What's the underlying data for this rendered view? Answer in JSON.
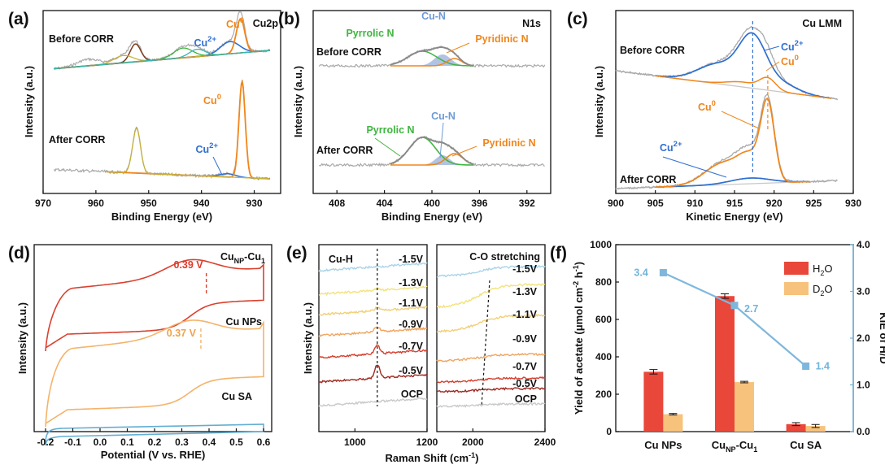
{
  "colors": {
    "grey_raw": "#a9a9a9",
    "orange": "#f0861c",
    "blue": "#2f6fd1",
    "green": "#3fb53f",
    "olive": "#c4b23c",
    "teal": "#38b6b0",
    "brown": "#7a3b1e",
    "light_blue_fill": "#9eb4db",
    "bar_h2o": "#e8473a",
    "bar_d2o": "#f7c27c",
    "kie_line": "#7fb7dc",
    "kie_axis": "#6fb5dd",
    "cv_red": "#d9412f",
    "cv_orange": "#f4b36a",
    "cv_blue": "#62aed3",
    "red_label": "#e03a2a",
    "orange_label": "#f0a24a"
  },
  "chart_data": [
    {
      "panel_label": "(a)",
      "type": "line",
      "corner_label": "Cu2p",
      "xlabel": "Binding Energy (eV)",
      "ylabel": "Intensity (a.u.)",
      "xlim": [
        970,
        925
      ],
      "x_ticks": [
        "970",
        "960",
        "950",
        "940",
        "930"
      ],
      "curves": [
        {
          "label": "Before CORR"
        },
        {
          "label": "After CORR"
        }
      ],
      "peaks": {
        "before_cu0": {
          "label": "Cu",
          "sup": "0",
          "x": 932.5
        },
        "before_cu2": {
          "label": "Cu",
          "sup": "2+",
          "x": 934.5
        },
        "after_cu0": {
          "label": "Cu",
          "sup": "0",
          "x": 932.3
        },
        "after_cu2": {
          "label": "Cu",
          "sup": "2+",
          "x": 935.0
        },
        "satellite_before": 952.5,
        "satellite_after": 952.3
      }
    },
    {
      "panel_label": "(b)",
      "type": "line",
      "corner_label": "N1s",
      "xlabel": "Binding Energy (eV)",
      "ylabel": "Intensity (a.u.)",
      "xlim": [
        410,
        390
      ],
      "x_ticks": [
        "408",
        "404",
        "400",
        "396",
        "392"
      ],
      "curves": [
        {
          "label": "Before CORR"
        },
        {
          "label": "After CORR"
        }
      ],
      "components": [
        {
          "label": "Pyrrolic N",
          "x": 400.8
        },
        {
          "label": "Cu-N",
          "x": 399.1
        },
        {
          "label": "Pyridinic N",
          "x": 398.1
        }
      ]
    },
    {
      "panel_label": "(c)",
      "type": "line",
      "corner_label": "Cu LMM",
      "xlabel": "Kinetic Energy (eV)",
      "ylabel": "Intensity (a.u.)",
      "xlim": [
        900,
        930
      ],
      "x_ticks": [
        "900",
        "905",
        "910",
        "915",
        "920",
        "925",
        "930"
      ],
      "curves": [
        {
          "label": "Before CORR"
        },
        {
          "label": "After CORR"
        }
      ],
      "components": [
        {
          "label": "Cu",
          "sup": "2+",
          "x": 917.3
        },
        {
          "label": "Cu",
          "sup": "0",
          "x": 919.2
        }
      ],
      "guides": [
        917.3,
        919.2
      ]
    },
    {
      "panel_label": "(d)",
      "type": "line",
      "xlabel": "Potential (V vs. RHE)",
      "ylabel": "Intensity (a.u.)",
      "xlim": [
        -0.2,
        0.6
      ],
      "x_ticks": [
        "-0.2",
        "-0.1",
        "0.0",
        "0.1",
        "0.2",
        "0.3",
        "0.4",
        "0.5",
        "0.6"
      ],
      "series": [
        {
          "name": "Cu",
          "sub": "NP",
          "suffix": "-Cu",
          "sub2": "1",
          "marker": "0.39 V",
          "marker_x": 0.39
        },
        {
          "name": "Cu NPs",
          "marker": "0.37 V",
          "marker_x": 0.37
        },
        {
          "name": "Cu SA"
        }
      ]
    },
    {
      "panel_label": "(e)",
      "type": "line",
      "xlabel": "Raman Shift (cm",
      "xlabel_sup": "-1",
      "xlabel_end": ")",
      "ylabel": "Intensity (a.u.)",
      "left_region": {
        "title": "Cu-H",
        "xlim": [
          900,
          1200
        ],
        "x_ticks": [
          "1000",
          "1200"
        ],
        "guide_x": 1062,
        "labels": [
          "-1.5V",
          "-1.3V",
          "-1.1V",
          "-0.9V",
          "-0.7V",
          "-0.5V",
          "OCP"
        ]
      },
      "right_region": {
        "title": "C-O stretching",
        "xlim": [
          1800,
          2400
        ],
        "x_ticks": [
          "2000",
          "2400"
        ],
        "labels": [
          "-1.5V",
          "-1.3V",
          "-1.1V",
          "-0.9V",
          "-0.7V",
          "-0.5V",
          "OCP"
        ]
      }
    },
    {
      "panel_label": "(f)",
      "type": "bar",
      "categories": [
        {
          "text": "Cu NPs"
        },
        {
          "text": "Cu",
          "sub": "NP",
          "suffix": "-Cu",
          "sub2": "1"
        },
        {
          "text": "Cu SA"
        }
      ],
      "ylabel": "Yield of acetate (μmol cm",
      "ylabel_sup1": "-2",
      "ylabel_mid": " h",
      "ylabel_sup2": "-1",
      "ylabel_end": ")",
      "y2label": "KIE of H/D",
      "ylim": [
        0,
        1000
      ],
      "y2lim": [
        0,
        4.0
      ],
      "y_ticks": [
        "0",
        "200",
        "400",
        "600",
        "800",
        "1000"
      ],
      "y2_ticks": [
        "0.0",
        "1.0",
        "2.0",
        "3.0",
        "4.0"
      ],
      "series": [
        {
          "name": "H",
          "sub": "2",
          "suffix": "O",
          "values": [
            320,
            725,
            40
          ],
          "errors": [
            12,
            12,
            8
          ]
        },
        {
          "name": "D",
          "sub": "2",
          "suffix": "O",
          "values": [
            93,
            265,
            30
          ],
          "errors": [
            4,
            4,
            8
          ]
        }
      ],
      "kie": {
        "values": [
          3.4,
          2.7,
          1.4
        ],
        "labels": [
          "3.4",
          "2.7",
          "1.4"
        ]
      },
      "legend_position": "top-right"
    }
  ]
}
